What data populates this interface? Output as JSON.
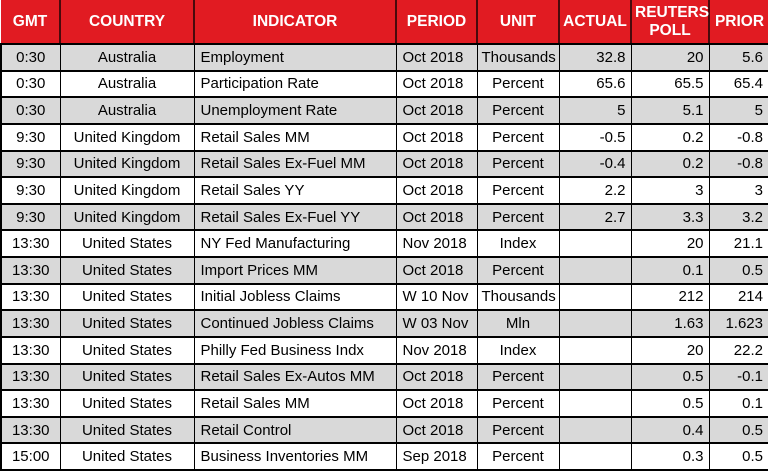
{
  "colors": {
    "header_bg": "#e11b22",
    "header_text": "#ffffff",
    "header_separator": "#480a0c",
    "row_alt": "#d9d9d9",
    "row_bg": "#ffffff",
    "grid": "#000000",
    "body_text": "#000000"
  },
  "table": {
    "columns": [
      {
        "key": "gmt",
        "label": "GMT",
        "align": "center"
      },
      {
        "key": "country",
        "label": "COUNTRY",
        "align": "center"
      },
      {
        "key": "indicator",
        "label": "INDICATOR",
        "align": "left"
      },
      {
        "key": "period",
        "label": "PERIOD",
        "align": "left"
      },
      {
        "key": "unit",
        "label": "UNIT",
        "align": "center"
      },
      {
        "key": "actual",
        "label": "ACTUAL",
        "align": "right"
      },
      {
        "key": "reuters_poll",
        "label": "REUTERS POLL",
        "align": "right"
      },
      {
        "key": "prior",
        "label": "PRIOR",
        "align": "right"
      }
    ],
    "rows": [
      {
        "gmt": "0:30",
        "country": "Australia",
        "indicator": "Employment",
        "period": "Oct 2018",
        "unit": "Thousands",
        "actual": "32.8",
        "reuters_poll": "20",
        "prior": "5.6"
      },
      {
        "gmt": "0:30",
        "country": "Australia",
        "indicator": "Participation Rate",
        "period": "Oct 2018",
        "unit": "Percent",
        "actual": "65.6",
        "reuters_poll": "65.5",
        "prior": "65.4"
      },
      {
        "gmt": "0:30",
        "country": "Australia",
        "indicator": "Unemployment Rate",
        "period": "Oct 2018",
        "unit": "Percent",
        "actual": "5",
        "reuters_poll": "5.1",
        "prior": "5"
      },
      {
        "gmt": "9:30",
        "country": "United Kingdom",
        "indicator": "Retail Sales MM",
        "period": "Oct 2018",
        "unit": "Percent",
        "actual": "-0.5",
        "reuters_poll": "0.2",
        "prior": "-0.8"
      },
      {
        "gmt": "9:30",
        "country": "United Kingdom",
        "indicator": "Retail Sales Ex-Fuel MM",
        "period": "Oct 2018",
        "unit": "Percent",
        "actual": "-0.4",
        "reuters_poll": "0.2",
        "prior": "-0.8"
      },
      {
        "gmt": "9:30",
        "country": "United Kingdom",
        "indicator": "Retail Sales YY",
        "period": "Oct 2018",
        "unit": "Percent",
        "actual": "2.2",
        "reuters_poll": "3",
        "prior": "3"
      },
      {
        "gmt": "9:30",
        "country": "United Kingdom",
        "indicator": "Retail Sales Ex-Fuel YY",
        "period": "Oct 2018",
        "unit": "Percent",
        "actual": "2.7",
        "reuters_poll": "3.3",
        "prior": "3.2"
      },
      {
        "gmt": "13:30",
        "country": "United States",
        "indicator": "NY Fed Manufacturing",
        "period": "Nov 2018",
        "unit": "Index",
        "actual": "",
        "reuters_poll": "20",
        "prior": "21.1"
      },
      {
        "gmt": "13:30",
        "country": "United States",
        "indicator": "Import Prices MM",
        "period": "Oct 2018",
        "unit": "Percent",
        "actual": "",
        "reuters_poll": "0.1",
        "prior": "0.5"
      },
      {
        "gmt": "13:30",
        "country": "United States",
        "indicator": "Initial Jobless Claims",
        "period": "W 10 Nov",
        "unit": "Thousands",
        "actual": "",
        "reuters_poll": "212",
        "prior": "214"
      },
      {
        "gmt": "13:30",
        "country": "United States",
        "indicator": "Continued Jobless Claims",
        "period": "W 03 Nov",
        "unit": "Mln",
        "actual": "",
        "reuters_poll": "1.63",
        "prior": "1.623"
      },
      {
        "gmt": "13:30",
        "country": "United States",
        "indicator": "Philly Fed Business Indx",
        "period": "Nov 2018",
        "unit": "Index",
        "actual": "",
        "reuters_poll": "20",
        "prior": "22.2"
      },
      {
        "gmt": "13:30",
        "country": "United States",
        "indicator": "Retail Sales Ex-Autos MM",
        "period": "Oct 2018",
        "unit": "Percent",
        "actual": "",
        "reuters_poll": "0.5",
        "prior": "-0.1"
      },
      {
        "gmt": "13:30",
        "country": "United States",
        "indicator": "Retail Sales MM",
        "period": "Oct 2018",
        "unit": "Percent",
        "actual": "",
        "reuters_poll": "0.5",
        "prior": "0.1"
      },
      {
        "gmt": "13:30",
        "country": "United States",
        "indicator": "Retail Control",
        "period": "Oct 2018",
        "unit": "Percent",
        "actual": "",
        "reuters_poll": "0.4",
        "prior": "0.5"
      },
      {
        "gmt": "15:00",
        "country": "United States",
        "indicator": "Business Inventories MM",
        "period": "Sep 2018",
        "unit": "Percent",
        "actual": "",
        "reuters_poll": "0.3",
        "prior": "0.5"
      }
    ]
  }
}
